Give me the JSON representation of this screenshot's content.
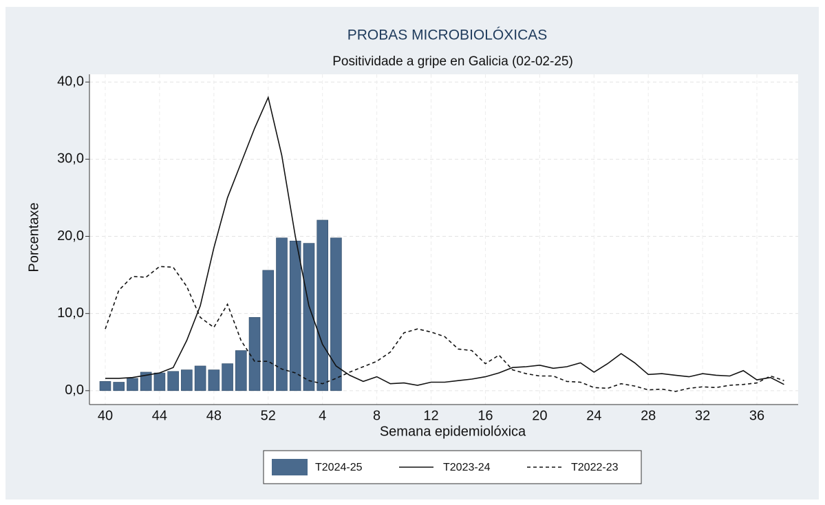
{
  "chart_data": {
    "type": "bar",
    "title": "PROBAS MICROBIOLÓXICAS",
    "subtitle": "Positividade a gripe en Galicia (02-02-25)",
    "x_label": "Semana epidemiolóxica",
    "y_label": "Porcentaxe",
    "categories": [
      40,
      null,
      null,
      null,
      44,
      null,
      null,
      null,
      48,
      null,
      null,
      null,
      52,
      null,
      null,
      null,
      4,
      null,
      null,
      null,
      8,
      null,
      null,
      null,
      12,
      null,
      null,
      null,
      16,
      null,
      null,
      null,
      20,
      null,
      null,
      null,
      24,
      null,
      null,
      null,
      28,
      null,
      null,
      null,
      32,
      null,
      null,
      null,
      36,
      null,
      null,
      null
    ],
    "series": [
      {
        "name": "T2024-25",
        "type": "bar",
        "color": "#4a6a8d",
        "values": [
          1.2,
          1.1,
          1.6,
          2.4,
          2.3,
          2.5,
          2.7,
          3.2,
          2.7,
          3.5,
          5.2,
          9.5,
          15.6,
          19.8,
          19.4,
          19.1,
          22.1,
          19.8,
          null,
          null,
          null,
          null,
          null,
          null,
          null,
          null,
          null,
          null,
          null,
          null,
          null,
          null,
          null,
          null,
          null,
          null,
          null,
          null,
          null,
          null,
          null,
          null,
          null,
          null,
          null,
          null,
          null,
          null,
          null,
          null,
          null,
          null
        ]
      },
      {
        "name": "T2023-24",
        "type": "line",
        "style": "solid",
        "color": "#111111",
        "values": [
          1.6,
          1.6,
          1.7,
          2.0,
          2.3,
          3.0,
          6.5,
          11,
          18.5,
          25,
          29.5,
          34,
          38,
          30.5,
          20,
          11,
          6,
          3.2,
          2.0,
          1.2,
          1.8,
          0.9,
          1.0,
          0.7,
          1.1,
          1.1,
          1.3,
          1.5,
          1.8,
          2.3,
          3.0,
          3.1,
          3.3,
          2.9,
          3.1,
          3.6,
          2.4,
          3.5,
          4.8,
          3.6,
          2.1,
          2.2,
          2.0,
          1.8,
          2.2,
          2.0,
          1.9,
          2.6,
          1.4,
          1.7,
          0.8,
          null
        ]
      },
      {
        "name": "T2022-23",
        "type": "line",
        "style": "dashed",
        "color": "#111111",
        "values": [
          8.0,
          13.0,
          14.8,
          14.7,
          16.1,
          16.0,
          13.5,
          9.5,
          8.2,
          11.2,
          6.5,
          3.8,
          3.8,
          2.8,
          2.3,
          1.3,
          0.9,
          1.6,
          2.4,
          3.1,
          3.8,
          5.0,
          7.5,
          8.0,
          7.6,
          7.0,
          5.4,
          5.2,
          3.5,
          4.6,
          2.7,
          2.2,
          1.9,
          1.9,
          1.2,
          1.1,
          0.4,
          0.3,
          0.9,
          0.6,
          0.1,
          0.2,
          -0.1,
          0.3,
          0.5,
          0.4,
          0.7,
          0.8,
          1.0,
          1.9,
          1.3,
          null
        ]
      }
    ],
    "ylim": [
      -1.8,
      41
    ],
    "yticks": [
      {
        "value": 0,
        "label": "0,0"
      },
      {
        "value": 10,
        "label": "10,0"
      },
      {
        "value": 20,
        "label": "20,0"
      },
      {
        "value": 30,
        "label": "30,0"
      },
      {
        "value": 40,
        "label": "40,0"
      }
    ],
    "grid": true,
    "legend": "bottom"
  }
}
